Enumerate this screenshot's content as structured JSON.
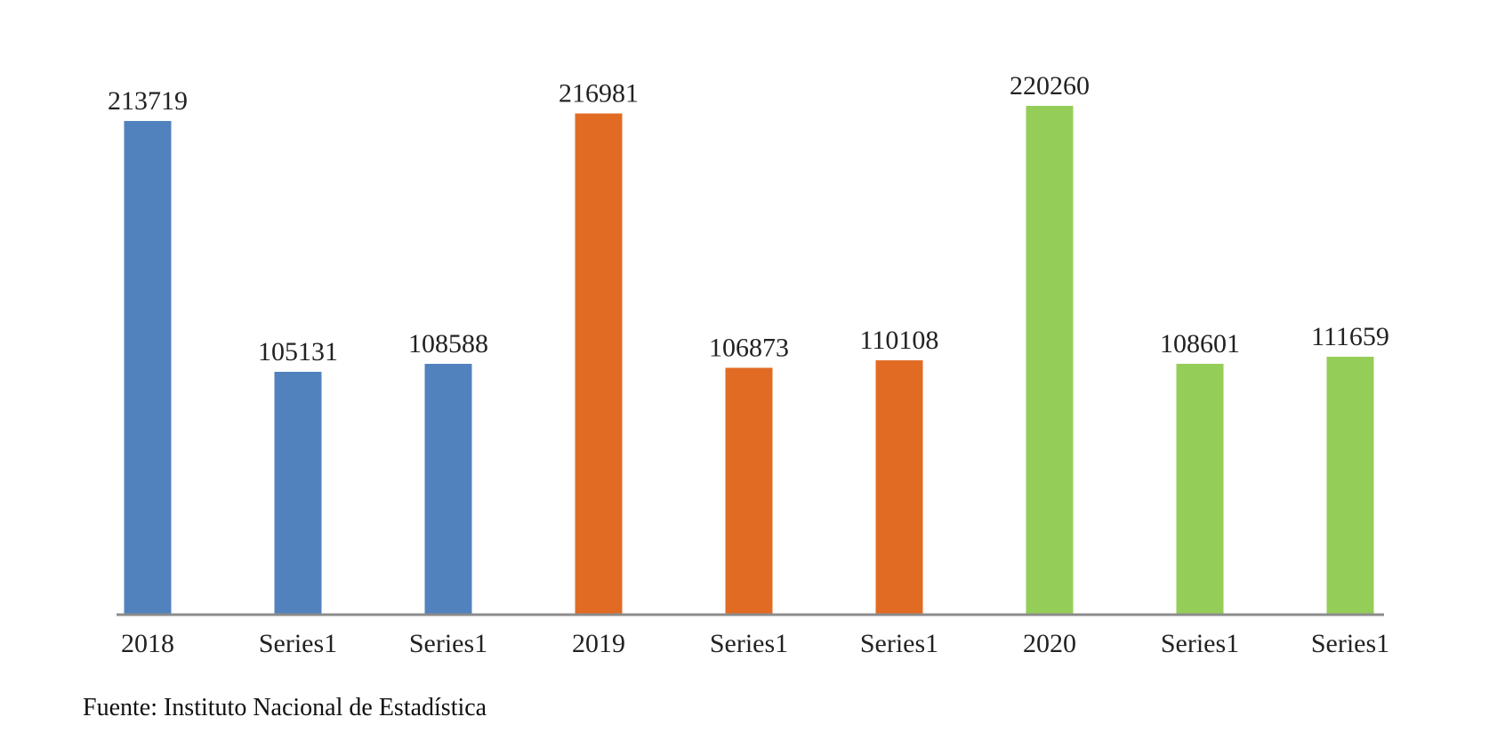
{
  "chart_data": {
    "type": "bar",
    "categories": [
      "2018",
      "Series1",
      "Series1",
      "2019",
      "Series1",
      "Series1",
      "2020",
      "Series1",
      "Series1"
    ],
    "values": [
      213719,
      105131,
      108588,
      216981,
      106873,
      110108,
      220260,
      108601,
      111659
    ],
    "colors": [
      "#5282bd",
      "#5282bd",
      "#5282bd",
      "#e26b24",
      "#e26b24",
      "#e26b24",
      "#95cd59",
      "#95cd59",
      "#95cd59"
    ],
    "title": "",
    "xlabel": "",
    "ylabel": "",
    "ylim": [
      0,
      220260
    ],
    "grid": false,
    "axis_color": "#8c8c8c"
  },
  "source": {
    "text": "Fuente: Instituto Nacional de Estadística"
  }
}
